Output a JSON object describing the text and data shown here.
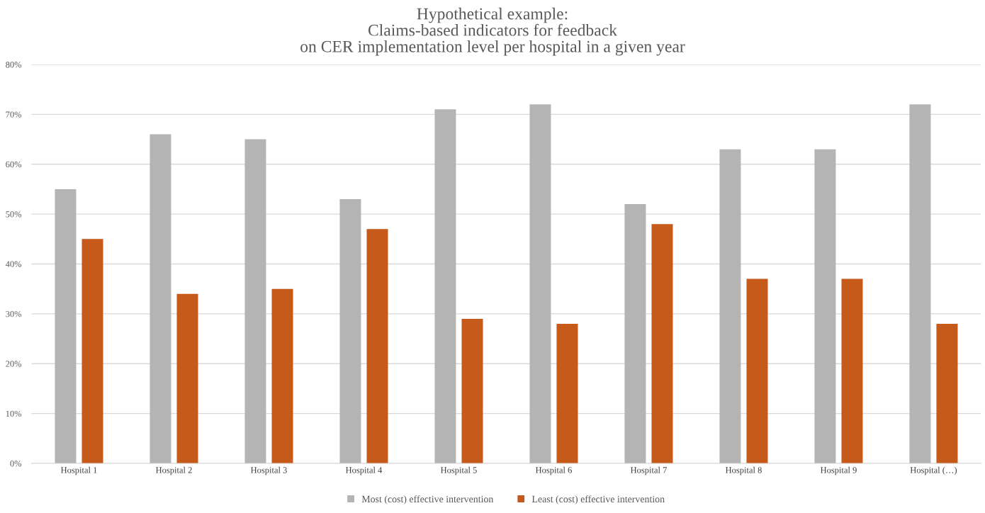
{
  "chart_data": {
    "type": "bar",
    "title": "Hypothetical example:\nClaims-based indicators for feedback\non CER implementation level per hospital in a given year",
    "categories": [
      "Hospital 1",
      "Hospital 2",
      "Hospital 3",
      "Hospital 4",
      "Hospital 5",
      "Hospital 6",
      "Hospital 7",
      "Hospital 8",
      "Hospital 9",
      "Hospital (…)"
    ],
    "series": [
      {
        "name": "Most (cost) effective intervention",
        "color": "#b4b4b4",
        "values": [
          55,
          66,
          65,
          53,
          71,
          72,
          52,
          63,
          63,
          72
        ]
      },
      {
        "name": "Least (cost) effective intervention",
        "color": "#c55a1a",
        "values": [
          45,
          34,
          35,
          47,
          29,
          28,
          48,
          37,
          37,
          28
        ]
      }
    ],
    "ylim": [
      0,
      80
    ],
    "yticks": [
      {
        "value": 0,
        "label": "0%"
      },
      {
        "value": 10,
        "label": "10%"
      },
      {
        "value": 20,
        "label": "20%"
      },
      {
        "value": 30,
        "label": "30%"
      },
      {
        "value": 40,
        "label": "40%"
      },
      {
        "value": 50,
        "label": "50%"
      },
      {
        "value": 60,
        "label": "60%"
      },
      {
        "value": 70,
        "label": "70%"
      },
      {
        "value": 80,
        "label": "80%"
      }
    ],
    "grid": "y",
    "legend": "bottom"
  }
}
